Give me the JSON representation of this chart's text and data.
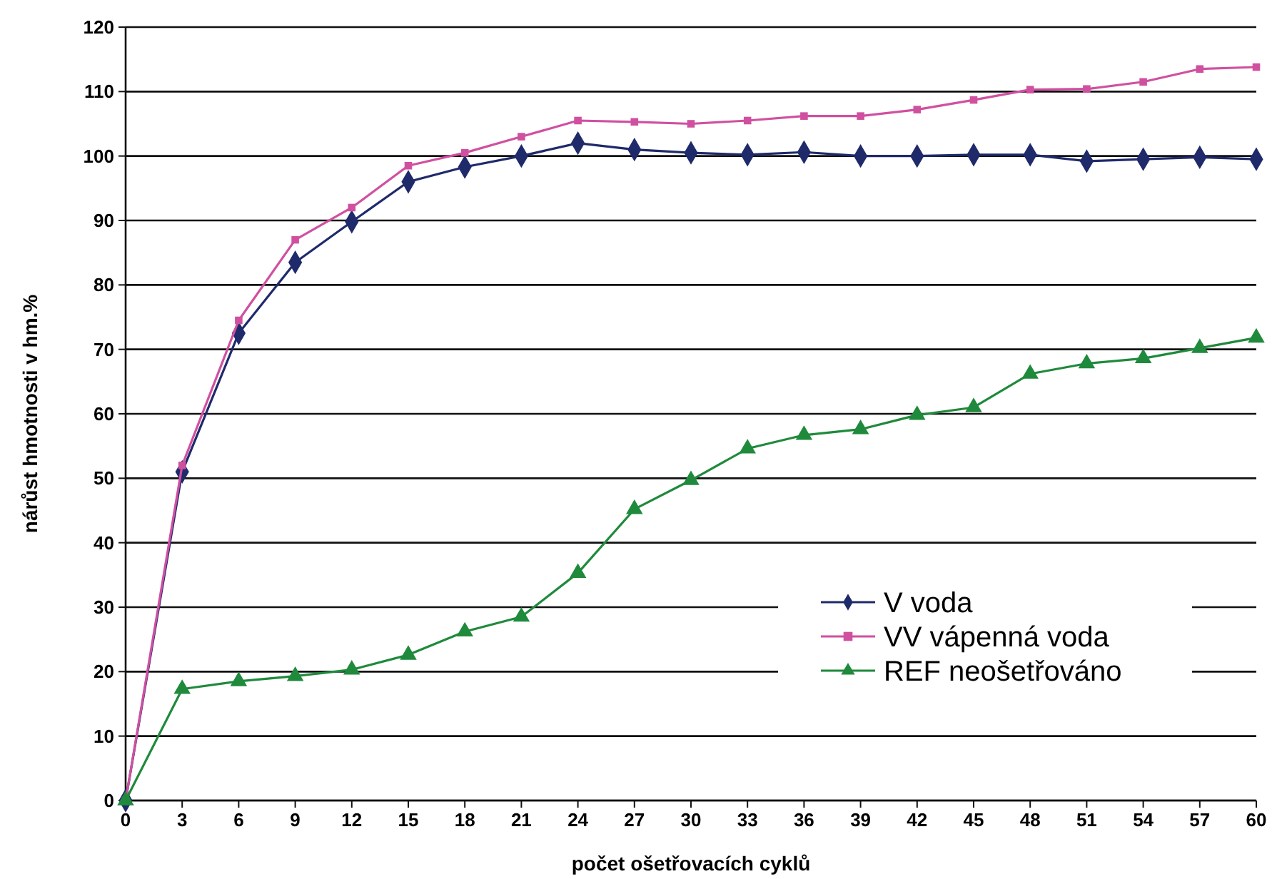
{
  "chart_data": {
    "type": "line",
    "xlabel": "počet ošetřovacích cyklů",
    "ylabel": "nárůst hmotnosti v hm.%",
    "x": [
      0,
      3,
      6,
      9,
      12,
      15,
      18,
      21,
      24,
      27,
      30,
      33,
      36,
      39,
      42,
      45,
      48,
      51,
      54,
      57,
      60
    ],
    "xlim": [
      0,
      60
    ],
    "xticks": [
      0,
      3,
      6,
      9,
      12,
      15,
      18,
      21,
      24,
      27,
      30,
      33,
      36,
      39,
      42,
      45,
      48,
      51,
      54,
      57,
      60
    ],
    "ylim": [
      0,
      120
    ],
    "yticks": [
      0,
      10,
      20,
      30,
      40,
      50,
      60,
      70,
      80,
      90,
      100,
      110,
      120
    ],
    "grid": "y",
    "legend": "right",
    "line_style": "solid",
    "series": [
      {
        "name": "V voda",
        "color": "#1f2a6b",
        "marker": "diamond",
        "values": [
          0,
          51,
          72.5,
          83.5,
          89.8,
          96,
          98.3,
          100,
          102,
          101,
          100.5,
          100.2,
          100.6,
          100,
          100,
          100.2,
          100.2,
          99.2,
          99.5,
          99.8,
          99.5
        ]
      },
      {
        "name": "VV vápenná voda",
        "color": "#d050a0",
        "marker": "square",
        "values": [
          0,
          52,
          74.5,
          87,
          92,
          98.5,
          100.5,
          103,
          105.5,
          105.3,
          105,
          105.5,
          106.2,
          106.2,
          107.2,
          108.7,
          110.3,
          110.4,
          111.5,
          113.5,
          113.8
        ]
      },
      {
        "name": "REF neošetřováno",
        "color": "#1f8a3c",
        "marker": "triangle",
        "values": [
          0,
          17.3,
          18.5,
          19.3,
          20.3,
          22.6,
          26.2,
          28.5,
          35.3,
          45.2,
          49.7,
          54.6,
          56.7,
          57.6,
          59.8,
          61,
          66.2,
          67.8,
          68.6,
          70.2,
          71.8
        ]
      }
    ]
  }
}
